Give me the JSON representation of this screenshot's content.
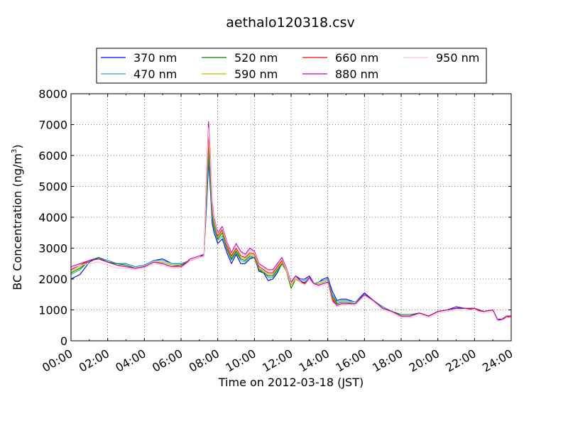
{
  "chart_data": {
    "type": "line",
    "title": "aethalo120318.csv",
    "xlabel": "Time on 2012-03-18 (JST)",
    "ylabel_main": "BC Concentration (ng/m",
    "ylabel_sup": "3",
    "ylabel_close": ")",
    "xlim": [
      0,
      24
    ],
    "ylim": [
      0,
      8000
    ],
    "grid": true,
    "legend_position": "top-center",
    "x_ticks": [
      {
        "value": 0,
        "label": "00:00"
      },
      {
        "value": 2,
        "label": "02:00"
      },
      {
        "value": 4,
        "label": "04:00"
      },
      {
        "value": 6,
        "label": "06:00"
      },
      {
        "value": 8,
        "label": "08:00"
      },
      {
        "value": 10,
        "label": "10:00"
      },
      {
        "value": 12,
        "label": "12:00"
      },
      {
        "value": 14,
        "label": "14:00"
      },
      {
        "value": 16,
        "label": "16:00"
      },
      {
        "value": 18,
        "label": "18:00"
      },
      {
        "value": 20,
        "label": "20:00"
      },
      {
        "value": 22,
        "label": "22:00"
      },
      {
        "value": 24,
        "label": "24:00"
      }
    ],
    "y_ticks": [
      {
        "value": 0,
        "label": "0"
      },
      {
        "value": 1000,
        "label": "1000"
      },
      {
        "value": 2000,
        "label": "2000"
      },
      {
        "value": 3000,
        "label": "3000"
      },
      {
        "value": 4000,
        "label": "4000"
      },
      {
        "value": 5000,
        "label": "5000"
      },
      {
        "value": 6000,
        "label": "6000"
      },
      {
        "value": 7000,
        "label": "7000"
      },
      {
        "value": 8000,
        "label": "8000"
      }
    ],
    "x": [
      0,
      0.5,
      1,
      1.5,
      2,
      2.5,
      3,
      3.5,
      4,
      4.5,
      5,
      5.5,
      6,
      6.5,
      7,
      7.25,
      7.4,
      7.5,
      7.6,
      7.7,
      7.8,
      8,
      8.25,
      8.5,
      8.75,
      9,
      9.25,
      9.5,
      9.75,
      10,
      10.25,
      10.5,
      10.75,
      11,
      11.25,
      11.5,
      11.75,
      12,
      12.25,
      12.5,
      12.75,
      13,
      13.25,
      13.5,
      13.75,
      14,
      14.25,
      14.5,
      14.75,
      15,
      15.5,
      16,
      16.5,
      17,
      17.5,
      18,
      18.5,
      19,
      19.5,
      20,
      20.5,
      21,
      21.5,
      22,
      22.5,
      23,
      23.25,
      23.5,
      23.75,
      24
    ],
    "series": [
      {
        "name": "370 nm",
        "color": "#0000ff",
        "values": [
          2000,
          2150,
          2550,
          2700,
          2600,
          2500,
          2500,
          2400,
          2450,
          2600,
          2650,
          2500,
          2500,
          2600,
          2700,
          2800,
          4500,
          5800,
          4900,
          3800,
          3500,
          3150,
          3300,
          2850,
          2500,
          2800,
          2500,
          2500,
          2650,
          2700,
          2250,
          2200,
          1950,
          2000,
          2200,
          2500,
          2250,
          1900,
          2100,
          2000,
          2000,
          2100,
          1850,
          1900,
          2000,
          2050,
          1600,
          1300,
          1350,
          1350,
          1250,
          1550,
          1300,
          1100,
          950,
          800,
          800,
          900,
          800,
          950,
          1000,
          1100,
          1050,
          1050,
          950,
          1000,
          650,
          700,
          800,
          800
        ]
      },
      {
        "name": "470 nm",
        "color": "#20b2aa",
        "values": [
          2150,
          2300,
          2600,
          2700,
          2600,
          2500,
          2500,
          2400,
          2450,
          2600,
          2600,
          2500,
          2500,
          2600,
          2700,
          2750,
          4700,
          6000,
          5100,
          4000,
          3600,
          3250,
          3400,
          2950,
          2600,
          2850,
          2600,
          2550,
          2700,
          2700,
          2300,
          2250,
          2050,
          2050,
          2250,
          2500,
          2250,
          1850,
          2050,
          1950,
          1950,
          2050,
          1850,
          1900,
          1950,
          2000,
          1500,
          1250,
          1300,
          1300,
          1250,
          1500,
          1300,
          1100,
          950,
          850,
          850,
          900,
          800,
          950,
          1000,
          1050,
          1050,
          1050,
          950,
          1000,
          700,
          700,
          800,
          800
        ]
      },
      {
        "name": "520 nm",
        "color": "#008000",
        "values": [
          2200,
          2350,
          2600,
          2700,
          2550,
          2500,
          2450,
          2350,
          2400,
          2550,
          2550,
          2450,
          2450,
          2600,
          2700,
          2750,
          4900,
          6300,
          5300,
          4100,
          3700,
          3300,
          3500,
          3000,
          2650,
          2900,
          2650,
          2600,
          2750,
          2700,
          2300,
          2200,
          2100,
          2100,
          2300,
          2500,
          2250,
          1700,
          2000,
          1900,
          1900,
          2000,
          1850,
          1850,
          1900,
          1950,
          1450,
          1200,
          1250,
          1250,
          1200,
          1500,
          1300,
          1050,
          950,
          850,
          850,
          900,
          800,
          950,
          1000,
          1050,
          1050,
          1050,
          950,
          1000,
          700,
          700,
          800,
          800
        ]
      },
      {
        "name": "590 nm",
        "color": "#bfbf00",
        "values": [
          2250,
          2400,
          2600,
          2650,
          2550,
          2450,
          2400,
          2350,
          2400,
          2550,
          2550,
          2450,
          2400,
          2600,
          2700,
          2750,
          5100,
          6500,
          5500,
          4200,
          3800,
          3350,
          3550,
          3050,
          2700,
          2950,
          2700,
          2650,
          2800,
          2750,
          2350,
          2250,
          2150,
          2150,
          2350,
          2550,
          2250,
          1800,
          2000,
          1900,
          1850,
          2000,
          1850,
          1850,
          1900,
          1950,
          1400,
          1150,
          1200,
          1200,
          1200,
          1500,
          1300,
          1050,
          950,
          800,
          800,
          900,
          800,
          950,
          1000,
          1050,
          1050,
          1000,
          950,
          1000,
          700,
          700,
          750,
          800
        ]
      },
      {
        "name": "660 nm",
        "color": "#ff0000",
        "values": [
          2300,
          2450,
          2600,
          2650,
          2550,
          2450,
          2400,
          2350,
          2400,
          2550,
          2500,
          2400,
          2400,
          2600,
          2700,
          2750,
          5300,
          6700,
          5700,
          4300,
          3900,
          3400,
          3600,
          3100,
          2750,
          3000,
          2750,
          2700,
          2850,
          2800,
          2400,
          2300,
          2200,
          2200,
          2400,
          2600,
          2300,
          1850,
          2050,
          1900,
          1850,
          2000,
          1850,
          1800,
          1850,
          1900,
          1350,
          1150,
          1200,
          1200,
          1200,
          1500,
          1300,
          1050,
          950,
          800,
          800,
          900,
          800,
          950,
          1000,
          1050,
          1050,
          1000,
          950,
          1000,
          700,
          700,
          750,
          800
        ]
      },
      {
        "name": "880 nm",
        "color": "#bf00bf",
        "values": [
          2400,
          2500,
          2600,
          2650,
          2550,
          2450,
          2400,
          2350,
          2400,
          2550,
          2500,
          2400,
          2400,
          2650,
          2750,
          2800,
          5600,
          7100,
          6000,
          4500,
          4000,
          3500,
          3700,
          3200,
          2850,
          3150,
          2900,
          2800,
          3000,
          2900,
          2500,
          2400,
          2300,
          2300,
          2500,
          2700,
          2350,
          1900,
          2100,
          1950,
          1850,
          2050,
          1850,
          1800,
          1850,
          1900,
          1300,
          1150,
          1200,
          1200,
          1200,
          1500,
          1300,
          1050,
          950,
          800,
          800,
          900,
          800,
          950,
          1000,
          1050,
          1050,
          1050,
          950,
          1000,
          700,
          700,
          800,
          800
        ]
      },
      {
        "name": "950 nm",
        "color": "#ffc0cb",
        "values": [
          2350,
          2450,
          2500,
          2550,
          2450,
          2350,
          2350,
          2300,
          2350,
          2500,
          2450,
          2350,
          2350,
          2600,
          2700,
          2750,
          5500,
          6900,
          5900,
          4400,
          3950,
          3450,
          3650,
          3150,
          2800,
          3100,
          2850,
          2750,
          2950,
          2850,
          2450,
          2350,
          2250,
          2250,
          2450,
          2650,
          2300,
          1850,
          2050,
          1900,
          1800,
          2000,
          1800,
          1750,
          1800,
          1850,
          1250,
          1100,
          1150,
          1150,
          1150,
          1450,
          1250,
          1000,
          900,
          750,
          750,
          850,
          750,
          900,
          950,
          1000,
          1000,
          1000,
          900,
          950,
          650,
          650,
          750,
          750
        ]
      }
    ]
  }
}
